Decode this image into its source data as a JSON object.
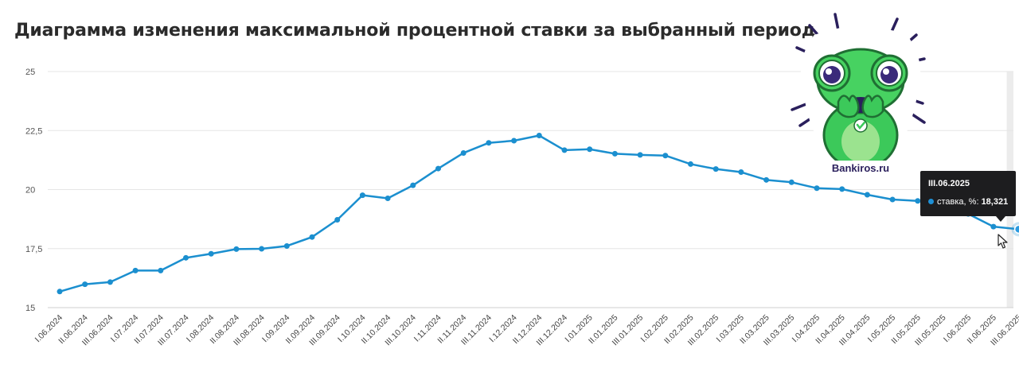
{
  "title": "Диаграмма изменения максимальной процентной ставки за выбранный период",
  "colors": {
    "line": "#1b8fcf",
    "grid": "#e6e6e6",
    "highlight": "#ececec",
    "tooltip_bg": "#1d1d1f"
  },
  "mascot": {
    "brand_text": "Bankiros.ru",
    "icon": "frog-mascot-icon"
  },
  "tooltip": {
    "date": "III.06.2025",
    "series_label": "ставка, %:",
    "value": "18,321"
  },
  "chart_data": {
    "type": "line",
    "title": "Диаграмма изменения максимальной процентной ставки за выбранный период",
    "xlabel": "",
    "ylabel": "",
    "ylim": [
      15,
      25
    ],
    "yticks": [
      15,
      17.5,
      20,
      22.5,
      25
    ],
    "ytick_labels": [
      "15",
      "17,5",
      "20",
      "22,5",
      "25"
    ],
    "grid": true,
    "legend": "none",
    "highlighted_category": "III.06.2025",
    "categories": [
      "I.06.2024",
      "II.06.2024",
      "III.06.2024",
      "I.07.2024",
      "II.07.2024",
      "III.07.2024",
      "I.08.2024",
      "II.08.2024",
      "III.08.2024",
      "I.09.2024",
      "II.09.2024",
      "III.09.2024",
      "I.10.2024",
      "II.10.2024",
      "III.10.2024",
      "I.11.2024",
      "II.11.2024",
      "III.11.2024",
      "I.12.2024",
      "II.12.2024",
      "III.12.2024",
      "I.01.2025",
      "II.01.2025",
      "III.01.2025",
      "I.02.2025",
      "II.02.2025",
      "III.02.2025",
      "I.03.2025",
      "II.03.2025",
      "III.03.2025",
      "I.04.2025",
      "II.04.2025",
      "III.04.2025",
      "I.05.2025",
      "II.05.2025",
      "III.05.2025",
      "I.06.2025",
      "II.06.2025",
      "III.06.2025"
    ],
    "series": [
      {
        "name": "ставка, %",
        "values": [
          15.68,
          15.99,
          16.08,
          16.57,
          16.57,
          17.11,
          17.28,
          17.48,
          17.49,
          17.61,
          17.99,
          18.72,
          19.76,
          19.63,
          20.18,
          20.89,
          21.55,
          21.98,
          22.07,
          22.29,
          21.67,
          21.71,
          21.52,
          21.47,
          21.44,
          21.08,
          20.87,
          20.74,
          20.41,
          20.31,
          20.06,
          20.02,
          19.78,
          19.58,
          19.52,
          19.36,
          18.97,
          18.43,
          18.32
        ]
      }
    ]
  }
}
